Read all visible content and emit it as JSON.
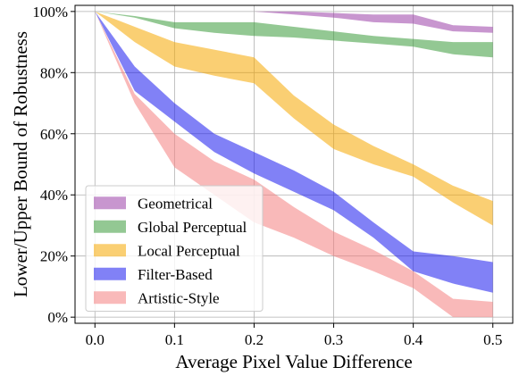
{
  "chart_data": {
    "type": "area",
    "xlabel": "Average Pixel Value Difference",
    "ylabel": "Lower/Upper Bound of Robustness",
    "xlim": [
      -0.025,
      0.525
    ],
    "ylim": [
      -2,
      102
    ],
    "x_ticks": [
      0.0,
      0.1,
      0.2,
      0.3,
      0.4,
      0.5
    ],
    "x_tick_labels": [
      "0.0",
      "0.1",
      "0.2",
      "0.3",
      "0.4",
      "0.5"
    ],
    "y_ticks": [
      0,
      20,
      40,
      60,
      80,
      100
    ],
    "y_tick_labels": [
      "0%",
      "20%",
      "40%",
      "60%",
      "80%",
      "100%"
    ],
    "grid": true,
    "legend_position": "lower-left",
    "x": [
      0.0,
      0.05,
      0.1,
      0.15,
      0.2,
      0.25,
      0.3,
      0.35,
      0.4,
      0.45,
      0.5
    ],
    "series": [
      {
        "name": "Geometrical",
        "color": "#9b3fa8",
        "upper": [
          100,
          100,
          100,
          100,
          100,
          100,
          99.5,
          99,
          99,
          95.5,
          95
        ],
        "lower": [
          100,
          100,
          100,
          100,
          100,
          99,
          98,
          96.5,
          96,
          93.5,
          93
        ]
      },
      {
        "name": "Global Perceptual",
        "color": "#3a9b3a",
        "upper": [
          100,
          98.5,
          96.5,
          96.5,
          96.5,
          95,
          93.5,
          92,
          91,
          90,
          90
        ],
        "lower": [
          100,
          98,
          94.5,
          93,
          92,
          91.5,
          90.5,
          89.5,
          88.5,
          86,
          85
        ]
      },
      {
        "name": "Local Perceptual",
        "color": "#f5a800",
        "upper": [
          100,
          95,
          90,
          87.5,
          85,
          72.5,
          63,
          56,
          50,
          43,
          38
        ],
        "lower": [
          100,
          90,
          82,
          79,
          76.5,
          65,
          55,
          50,
          46,
          37.5,
          30
        ]
      },
      {
        "name": "Filter-Based",
        "color": "#1a1aee",
        "upper": [
          100,
          82,
          70,
          60,
          54,
          48,
          41,
          31,
          21.5,
          20,
          18
        ],
        "lower": [
          100,
          74,
          64,
          54,
          47,
          41,
          35,
          26,
          15,
          11,
          8
        ]
      },
      {
        "name": "Artistic-Style",
        "color": "#f48080",
        "upper": [
          100,
          73,
          60,
          51,
          45,
          36,
          28,
          22,
          15,
          6,
          5
        ],
        "lower": [
          100,
          70,
          49,
          40,
          31,
          26,
          20,
          15,
          9.5,
          0,
          0
        ]
      }
    ]
  }
}
